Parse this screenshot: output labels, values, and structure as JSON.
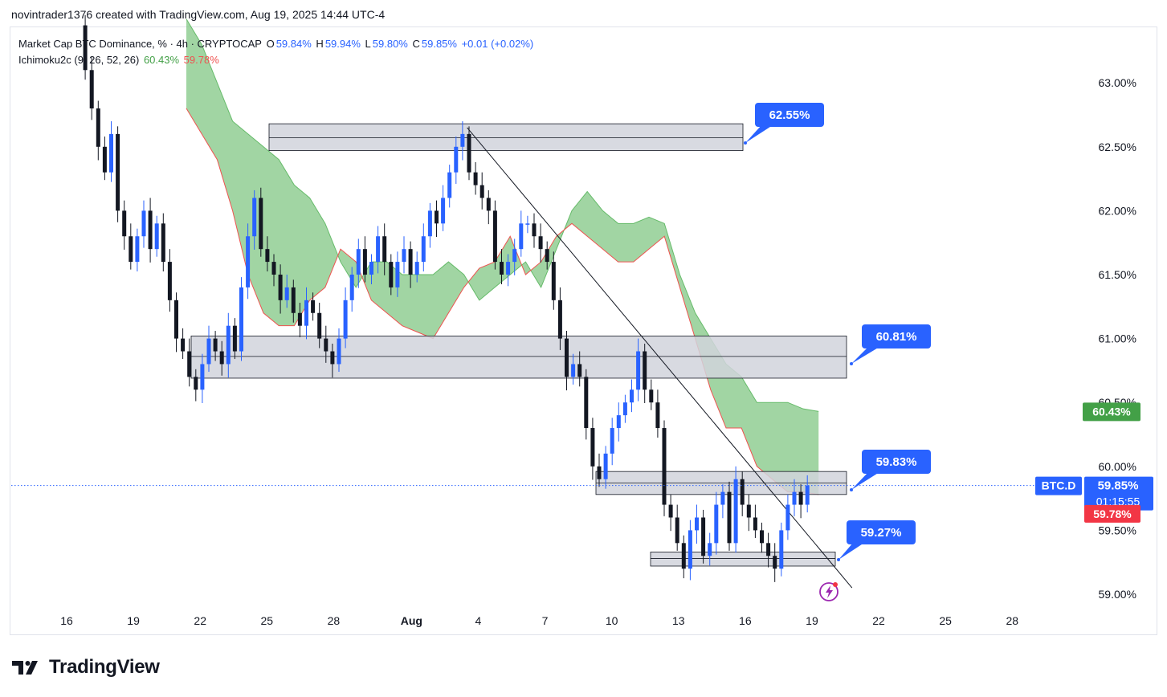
{
  "header": {
    "credit": "novintrader1376 created with TradingView.com, Aug 19, 2025 14:44 UTC-4"
  },
  "legend": {
    "symbol": "Market Cap BTC Dominance, % · 4h · CRYPTOCAP",
    "open_label": "O",
    "open": "59.84%",
    "high_label": "H",
    "high": "59.94%",
    "low_label": "L",
    "low": "59.80%",
    "close_label": "C",
    "close": "59.85%",
    "change": "+0.01 (+0.02%)",
    "indicator": "Ichimoku2c (9, 26, 52, 26)",
    "ind_val1": "60.43%",
    "ind_val2": "59.78%"
  },
  "colors": {
    "up": "#2962ff",
    "down": "#131722",
    "cloud": "#81c784",
    "cloud_border": "#ef5350",
    "zone_fill": "#d1d4dc",
    "callout": "#2962ff",
    "price_tag": "#2962ff",
    "green_tag": "#43a047",
    "red_tag": "#f23645"
  },
  "chart_data": {
    "type": "candlestick",
    "title": "Market Cap BTC Dominance, % · 4h · CRYPTOCAP",
    "ylim": [
      58.9,
      63.35
    ],
    "y_ticks": [
      "59.00%",
      "59.50%",
      "60.00%",
      "60.50%",
      "61.00%",
      "61.50%",
      "62.00%",
      "62.50%",
      "63.00%"
    ],
    "y_tick_values": [
      59.0,
      59.5,
      60.0,
      60.5,
      61.0,
      61.5,
      62.0,
      62.5,
      63.0
    ],
    "x_ticks": [
      "16",
      "19",
      "22",
      "25",
      "28",
      "Aug",
      "4",
      "7",
      "10",
      "13",
      "16",
      "19",
      "22",
      "25",
      "28"
    ],
    "x_tick_days": [
      0,
      3,
      6,
      9,
      12,
      15.5,
      18.5,
      21.5,
      24.5,
      27.5,
      30.5,
      33.5,
      36.5,
      39.5,
      42.5
    ],
    "closes": [
      63.45,
      63.1,
      62.8,
      62.5,
      62.3,
      62.6,
      62.0,
      61.8,
      61.6,
      61.8,
      62.0,
      61.7,
      61.9,
      61.6,
      61.3,
      61.0,
      60.9,
      60.7,
      60.6,
      60.8,
      61.0,
      60.9,
      60.8,
      61.1,
      60.9,
      61.4,
      61.8,
      62.1,
      61.7,
      61.6,
      61.5,
      61.3,
      61.4,
      61.2,
      61.1,
      61.3,
      61.2,
      61.0,
      60.9,
      60.8,
      61.0,
      61.3,
      61.5,
      61.7,
      61.5,
      61.6,
      61.8,
      61.6,
      61.4,
      61.6,
      61.7,
      61.5,
      61.6,
      61.8,
      62.0,
      61.9,
      62.1,
      62.3,
      62.5,
      62.6,
      62.3,
      62.2,
      62.1,
      62.0,
      61.6,
      61.5,
      61.6,
      61.7,
      61.9,
      61.9,
      61.8,
      61.7,
      61.6,
      61.3,
      61.0,
      60.7,
      60.8,
      60.7,
      60.3,
      60.0,
      59.9,
      60.1,
      60.3,
      60.4,
      60.5,
      60.6,
      60.9,
      60.6,
      60.5,
      60.3,
      59.7,
      59.6,
      59.4,
      59.2,
      59.5,
      59.6,
      59.3,
      59.4,
      59.7,
      59.8,
      59.4,
      59.9,
      59.7,
      59.6,
      59.5,
      59.4,
      59.3,
      59.2,
      59.5,
      59.7,
      59.8,
      59.7,
      59.85
    ],
    "cloud_lead_a": [
      63.5,
      63.3,
      63.0,
      62.7,
      62.6,
      62.5,
      62.4,
      62.2,
      62.1,
      61.9,
      61.6,
      61.4,
      61.6,
      61.6,
      61.5,
      61.5,
      61.5,
      61.6,
      61.5,
      61.3,
      61.4,
      61.5,
      61.6,
      61.4,
      61.7,
      62.0,
      62.15,
      62.0,
      61.9,
      61.9,
      61.95,
      61.9,
      61.5,
      61.2,
      61.0,
      60.8,
      60.7,
      60.5,
      60.5,
      60.5,
      60.45,
      60.43
    ],
    "cloud_lead_b": [
      62.8,
      62.6,
      62.4,
      62.0,
      61.5,
      61.2,
      61.1,
      61.1,
      61.3,
      61.4,
      61.7,
      61.6,
      61.3,
      61.2,
      61.1,
      61.05,
      61.0,
      61.2,
      61.4,
      61.55,
      61.6,
      61.8,
      61.5,
      61.6,
      61.8,
      61.9,
      61.8,
      61.7,
      61.6,
      61.6,
      61.7,
      61.8,
      61.4,
      61.0,
      60.6,
      60.3,
      60.3,
      60.0,
      59.9,
      59.8,
      59.8,
      59.78
    ],
    "zones": [
      {
        "from": 62.47,
        "to": 62.68,
        "mid": 62.57,
        "label": "62.55%"
      },
      {
        "from": 60.69,
        "to": 61.02,
        "mid": 60.86,
        "label": "60.81%"
      },
      {
        "from": 59.78,
        "to": 59.96,
        "mid": 59.87,
        "label": "59.83%"
      },
      {
        "from": 59.22,
        "to": 59.33,
        "mid": 59.28,
        "label": "59.27%"
      }
    ],
    "trendline": {
      "from": [
        18.0,
        62.65
      ],
      "to": [
        35.3,
        59.05
      ]
    },
    "current_price": {
      "symbol": "BTC.D",
      "value": "59.85%",
      "countdown": "01:15:55"
    },
    "ichimoku_tags": {
      "lead_a": "60.43%",
      "lead_b": "59.78%"
    }
  }
}
